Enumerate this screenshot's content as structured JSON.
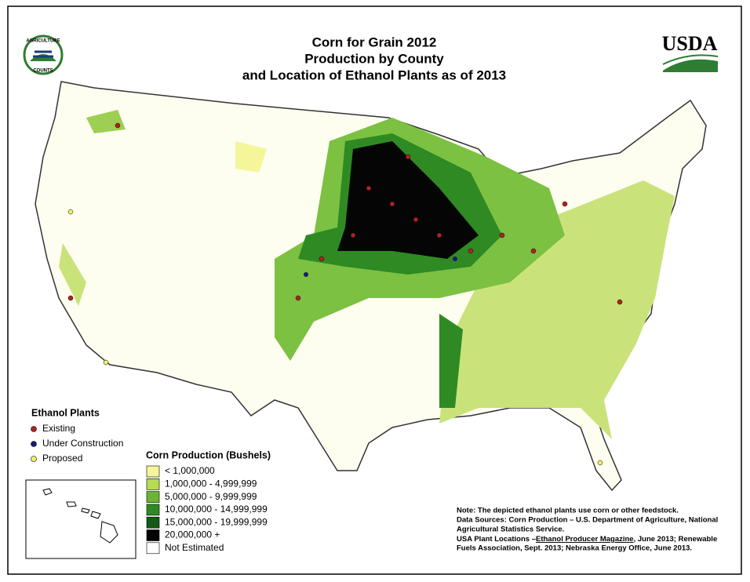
{
  "header": {
    "title_lines": [
      "Corn for Grain 2012",
      "Production by County",
      "and Location of Ethanol Plants as of 2013"
    ],
    "left_logo": {
      "top": "AGRICULTURE",
      "bottom": "COUNTS"
    },
    "right_logo": "USDA"
  },
  "ethanol_legend": {
    "title": "Ethanol Plants",
    "items": [
      {
        "label": "Existing",
        "color": "#b22222"
      },
      {
        "label": "Under Construction",
        "color": "#1a1a6e"
      },
      {
        "label": "Proposed",
        "color": "#f2ee6a"
      }
    ]
  },
  "corn_legend": {
    "title": "Corn Production (Bushels)",
    "items": [
      {
        "label": "< 1,000,000",
        "color": "#f5f59a"
      },
      {
        "label": "1,000,000 - 4,999,999",
        "color": "#b5dc55"
      },
      {
        "label": "5,000,000 - 9,999,999",
        "color": "#6ab535"
      },
      {
        "label": "10,000,000 - 14,999,999",
        "color": "#2f8a23"
      },
      {
        "label": "15,000,000 - 19,999,999",
        "color": "#145a14"
      },
      {
        "label": "20,000,000 +",
        "color": "#050505"
      },
      {
        "label": "Not Estimated",
        "color": "#ffffff"
      }
    ]
  },
  "notes": {
    "note": "Note: The depicted ethanol plants use corn or other feedstock.",
    "sources_1": "Data Sources: Corn Production – U.S. Department of Agriculture, National",
    "sources_2": "Agricultural Statistics Service.",
    "plants_prefix": "USA Plant Locations –",
    "plants_magazine": "Ethanol Producer Magazine",
    "plants_suffix": ", June 2013; Renewable",
    "plants_2": "Fuels Association, Sept. 2013; Nebraska Energy Office, June 2013."
  }
}
